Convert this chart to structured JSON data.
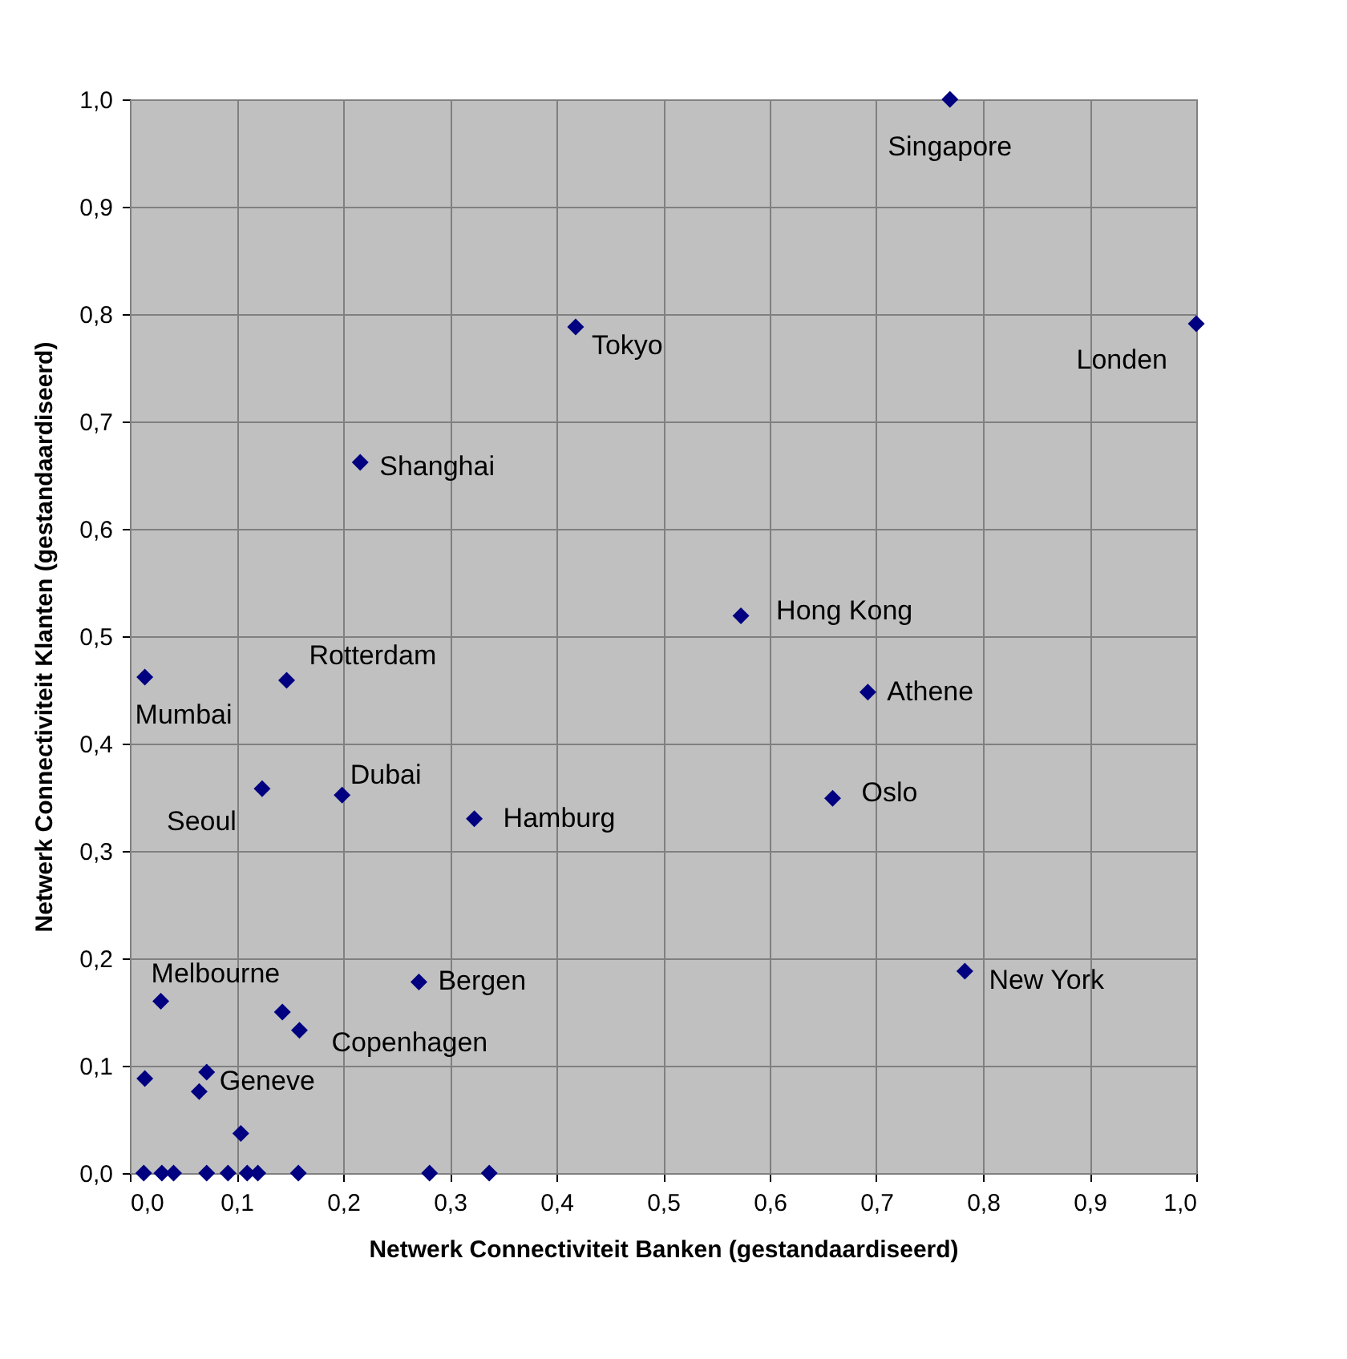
{
  "chart_data": {
    "type": "scatter",
    "xlabel": "Netwerk Connectiviteit Banken (gestandaardiseerd)",
    "ylabel": "Netwerk Connectiviteit Klanten (gestandaardiseerd)",
    "series": [
      {
        "color": "#000080",
        "marker": "diamond",
        "x": [
          0.769,
          1.0,
          0.418,
          0.216,
          0.573,
          0.692,
          0.147,
          0.014,
          0.124,
          0.199,
          0.323,
          0.659,
          0.783,
          0.271,
          0.159,
          0.029,
          0.072,
          0.143,
          0.014,
          0.065,
          0.104,
          0.013,
          0.03,
          0.041,
          0.072,
          0.092,
          0.11,
          0.12,
          0.158,
          0.281,
          0.337
        ],
        "values": [
          1.0,
          0.791,
          0.788,
          0.662,
          0.519,
          0.448,
          0.459,
          0.462,
          0.358,
          0.352,
          0.33,
          0.349,
          0.188,
          0.178,
          0.133,
          0.16,
          0.094,
          0.15,
          0.088,
          0.076,
          0.037,
          0,
          0,
          0,
          0,
          0,
          0,
          0,
          0,
          0,
          0
        ]
      }
    ],
    "annotations": [
      {
        "text": "Singapore",
        "x": 0.769,
        "y": 1.0
      },
      {
        "text": "Londen",
        "x": 1.0,
        "y": 0.791
      },
      {
        "text": "Tokyo",
        "x": 0.418,
        "y": 0.788
      },
      {
        "text": "Shanghai",
        "x": 0.216,
        "y": 0.662
      },
      {
        "text": "Hong Kong",
        "x": 0.573,
        "y": 0.519
      },
      {
        "text": "Athene",
        "x": 0.692,
        "y": 0.448
      },
      {
        "text": "Rotterdam",
        "x": 0.147,
        "y": 0.459
      },
      {
        "text": "Mumbai",
        "x": 0.014,
        "y": 0.462
      },
      {
        "text": "Seoul",
        "x": 0.124,
        "y": 0.358
      },
      {
        "text": "Dubai",
        "x": 0.199,
        "y": 0.352
      },
      {
        "text": "Hamburg",
        "x": 0.323,
        "y": 0.33
      },
      {
        "text": "Oslo",
        "x": 0.659,
        "y": 0.349
      },
      {
        "text": "New York",
        "x": 0.783,
        "y": 0.188
      },
      {
        "text": "Bergen",
        "x": 0.271,
        "y": 0.178
      },
      {
        "text": "Copenhagen",
        "x": 0.159,
        "y": 0.133
      },
      {
        "text": "Melbourne",
        "x": 0.029,
        "y": 0.16
      },
      {
        "text": "Geneve",
        "x": 0.072,
        "y": 0.094
      }
    ],
    "xlim": [
      0,
      1
    ],
    "ylim": [
      0,
      1
    ],
    "xticks": [
      {
        "value": 0,
        "label": "0,0"
      },
      {
        "value": 0.1,
        "label": "0,1"
      },
      {
        "value": 0.2,
        "label": "0,2"
      },
      {
        "value": 0.3,
        "label": "0,3"
      },
      {
        "value": 0.4,
        "label": "0,4"
      },
      {
        "value": 0.5,
        "label": "0,5"
      },
      {
        "value": 0.6,
        "label": "0,6"
      },
      {
        "value": 0.7,
        "label": "0,7"
      },
      {
        "value": 0.8,
        "label": "0,8"
      },
      {
        "value": 0.9,
        "label": "0,9"
      },
      {
        "value": 1,
        "label": "1,0"
      }
    ],
    "yticks": [
      {
        "value": 0,
        "label": "0,0"
      },
      {
        "value": 0.1,
        "label": "0,1"
      },
      {
        "value": 0.2,
        "label": "0,2"
      },
      {
        "value": 0.3,
        "label": "0,3"
      },
      {
        "value": 0.4,
        "label": "0,4"
      },
      {
        "value": 0.5,
        "label": "0,5"
      },
      {
        "value": 0.6,
        "label": "0,6"
      },
      {
        "value": 0.7,
        "label": "0,7"
      },
      {
        "value": 0.8,
        "label": "0,8"
      },
      {
        "value": 0.9,
        "label": "0,9"
      },
      {
        "value": 1,
        "label": "1,0"
      }
    ],
    "grid": true
  }
}
